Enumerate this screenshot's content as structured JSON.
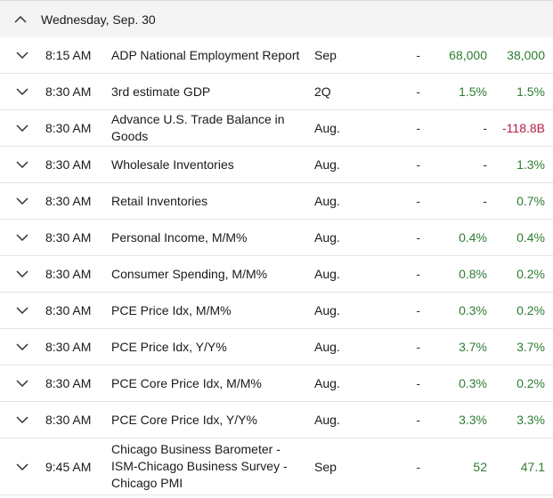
{
  "day": {
    "title": "Wednesday, Sep. 30"
  },
  "colors": {
    "positive": "#2e7d32",
    "negative": "#b71c45"
  },
  "rows": [
    {
      "time": "8:15 AM",
      "name": "ADP National Employment Report",
      "period": "Sep",
      "previous": "-",
      "consensus": "68,000",
      "actual": "38,000",
      "cons_tone": "pos",
      "act_tone": "pos"
    },
    {
      "time": "8:30 AM",
      "name": "3rd estimate GDP",
      "period": "2Q",
      "previous": "-",
      "consensus": "1.5%",
      "actual": "1.5%",
      "cons_tone": "pos",
      "act_tone": "pos"
    },
    {
      "time": "8:30 AM",
      "name": "Advance U.S. Trade Balance in Goods",
      "period": "Aug.",
      "previous": "-",
      "consensus": "-",
      "actual": "-118.8B",
      "cons_tone": "dash",
      "act_tone": "neg"
    },
    {
      "time": "8:30 AM",
      "name": "Wholesale Inventories",
      "period": "Aug.",
      "previous": "-",
      "consensus": "-",
      "actual": "1.3%",
      "cons_tone": "dash",
      "act_tone": "pos"
    },
    {
      "time": "8:30 AM",
      "name": "Retail Inventories",
      "period": "Aug.",
      "previous": "-",
      "consensus": "-",
      "actual": "0.7%",
      "cons_tone": "dash",
      "act_tone": "pos"
    },
    {
      "time": "8:30 AM",
      "name": "Personal Income, M/M%",
      "period": "Aug.",
      "previous": "-",
      "consensus": "0.4%",
      "actual": "0.4%",
      "cons_tone": "pos",
      "act_tone": "pos"
    },
    {
      "time": "8:30 AM",
      "name": "Consumer Spending, M/M%",
      "period": "Aug.",
      "previous": "-",
      "consensus": "0.8%",
      "actual": "0.2%",
      "cons_tone": "pos",
      "act_tone": "pos"
    },
    {
      "time": "8:30 AM",
      "name": "PCE Price Idx, M/M%",
      "period": "Aug.",
      "previous": "-",
      "consensus": "0.3%",
      "actual": "0.2%",
      "cons_tone": "pos",
      "act_tone": "pos"
    },
    {
      "time": "8:30 AM",
      "name": "PCE Price Idx, Y/Y%",
      "period": "Aug.",
      "previous": "-",
      "consensus": "3.7%",
      "actual": "3.7%",
      "cons_tone": "pos",
      "act_tone": "pos"
    },
    {
      "time": "8:30 AM",
      "name": "PCE Core Price Idx, M/M%",
      "period": "Aug.",
      "previous": "-",
      "consensus": "0.3%",
      "actual": "0.2%",
      "cons_tone": "pos",
      "act_tone": "pos"
    },
    {
      "time": "8:30 AM",
      "name": "PCE Core Price Idx, Y/Y%",
      "period": "Aug.",
      "previous": "-",
      "consensus": "3.3%",
      "actual": "3.3%",
      "cons_tone": "pos",
      "act_tone": "pos"
    },
    {
      "time": "9:45 AM",
      "name": "Chicago Business Barometer - ISM-Chicago Business Survey - Chicago PMI",
      "period": "Sep",
      "previous": "-",
      "consensus": "52",
      "actual": "47.1",
      "cons_tone": "pos",
      "act_tone": "pos"
    }
  ]
}
